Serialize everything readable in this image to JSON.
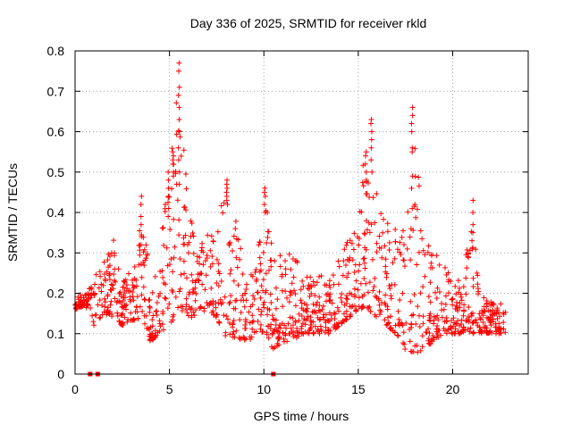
{
  "chart_data": {
    "type": "scatter",
    "title": "Day 336 of 2025, SRMTID for receiver rkld",
    "xlabel": "GPS time / hours",
    "ylabel": "SRMTID / TECUs",
    "xlim": [
      0,
      24
    ],
    "ylim": [
      0,
      0.8
    ],
    "xticks": [
      0,
      5,
      10,
      15,
      20
    ],
    "yticks": [
      0,
      0.1,
      0.2,
      0.3,
      0.4,
      0.5,
      0.6,
      0.7,
      0.8
    ],
    "xtick_labels": [
      "0",
      "5",
      "10",
      "15",
      "20"
    ],
    "ytick_labels": [
      "0",
      "0.1",
      "0.2",
      "0.3",
      "0.4",
      "0.5",
      "0.6",
      "0.7",
      "0.8"
    ],
    "grid": true,
    "marker": "+",
    "color": "#ff0000",
    "zero_points_x": [
      0.8,
      1.2,
      10.5
    ],
    "envelope": [
      [
        0.0,
        0.16,
        0.2
      ],
      [
        0.5,
        0.17,
        0.2
      ],
      [
        1.0,
        0.12,
        0.24
      ],
      [
        1.5,
        0.15,
        0.28
      ],
      [
        2.0,
        0.14,
        0.36
      ],
      [
        2.5,
        0.12,
        0.26
      ],
      [
        3.0,
        0.13,
        0.25
      ],
      [
        3.5,
        0.14,
        0.44
      ],
      [
        4.0,
        0.08,
        0.22
      ],
      [
        4.5,
        0.1,
        0.3
      ],
      [
        5.0,
        0.12,
        0.54
      ],
      [
        5.5,
        0.16,
        0.77
      ],
      [
        6.0,
        0.14,
        0.42
      ],
      [
        6.5,
        0.14,
        0.3
      ],
      [
        7.0,
        0.16,
        0.36
      ],
      [
        7.5,
        0.14,
        0.4
      ],
      [
        8.0,
        0.09,
        0.48
      ],
      [
        8.5,
        0.09,
        0.4
      ],
      [
        9.0,
        0.08,
        0.26
      ],
      [
        9.5,
        0.08,
        0.28
      ],
      [
        10.0,
        0.1,
        0.46
      ],
      [
        10.5,
        0.06,
        0.3
      ],
      [
        11.0,
        0.08,
        0.3
      ],
      [
        11.5,
        0.08,
        0.3
      ],
      [
        12.0,
        0.1,
        0.26
      ],
      [
        12.5,
        0.1,
        0.24
      ],
      [
        13.0,
        0.1,
        0.26
      ],
      [
        13.5,
        0.1,
        0.24
      ],
      [
        14.0,
        0.12,
        0.3
      ],
      [
        14.5,
        0.14,
        0.34
      ],
      [
        15.0,
        0.16,
        0.4
      ],
      [
        15.5,
        0.16,
        0.63
      ],
      [
        16.0,
        0.14,
        0.46
      ],
      [
        16.5,
        0.12,
        0.38
      ],
      [
        17.0,
        0.1,
        0.38
      ],
      [
        17.5,
        0.06,
        0.35
      ],
      [
        18.0,
        0.05,
        0.66
      ],
      [
        18.5,
        0.06,
        0.34
      ],
      [
        19.0,
        0.08,
        0.3
      ],
      [
        19.5,
        0.1,
        0.3
      ],
      [
        20.0,
        0.1,
        0.22
      ],
      [
        20.5,
        0.1,
        0.24
      ],
      [
        21.0,
        0.1,
        0.43
      ],
      [
        21.5,
        0.1,
        0.2
      ],
      [
        22.0,
        0.1,
        0.18
      ],
      [
        22.5,
        0.1,
        0.18
      ],
      [
        22.8,
        0.1,
        0.17
      ]
    ],
    "spikes": [
      {
        "x": 5.5,
        "values": [
          0.77,
          0.75,
          0.71,
          0.69,
          0.66,
          0.63,
          0.6,
          0.56,
          0.53,
          0.5,
          0.47
        ]
      },
      {
        "x": 5.2,
        "values": [
          0.55,
          0.54,
          0.53,
          0.52,
          0.5,
          0.49
        ]
      },
      {
        "x": 4.95,
        "values": [
          0.5,
          0.48,
          0.46,
          0.44,
          0.41,
          0.39
        ]
      },
      {
        "x": 3.5,
        "values": [
          0.44,
          0.42,
          0.39,
          0.37,
          0.34,
          0.32
        ]
      },
      {
        "x": 8.05,
        "values": [
          0.48,
          0.47,
          0.46,
          0.45,
          0.44,
          0.43,
          0.42
        ]
      },
      {
        "x": 10.05,
        "values": [
          0.46,
          0.45,
          0.44,
          0.42,
          0.4
        ]
      },
      {
        "x": 15.7,
        "values": [
          0.63,
          0.62,
          0.6,
          0.58,
          0.56,
          0.53,
          0.5
        ]
      },
      {
        "x": 15.4,
        "values": [
          0.55,
          0.54,
          0.52,
          0.5,
          0.48
        ]
      },
      {
        "x": 17.85,
        "values": [
          0.66,
          0.64,
          0.62,
          0.6,
          0.56,
          0.55,
          0.49,
          0.46,
          0.41
        ]
      },
      {
        "x": 21.05,
        "values": [
          0.43,
          0.4,
          0.37,
          0.35,
          0.33,
          0.31
        ]
      }
    ]
  }
}
